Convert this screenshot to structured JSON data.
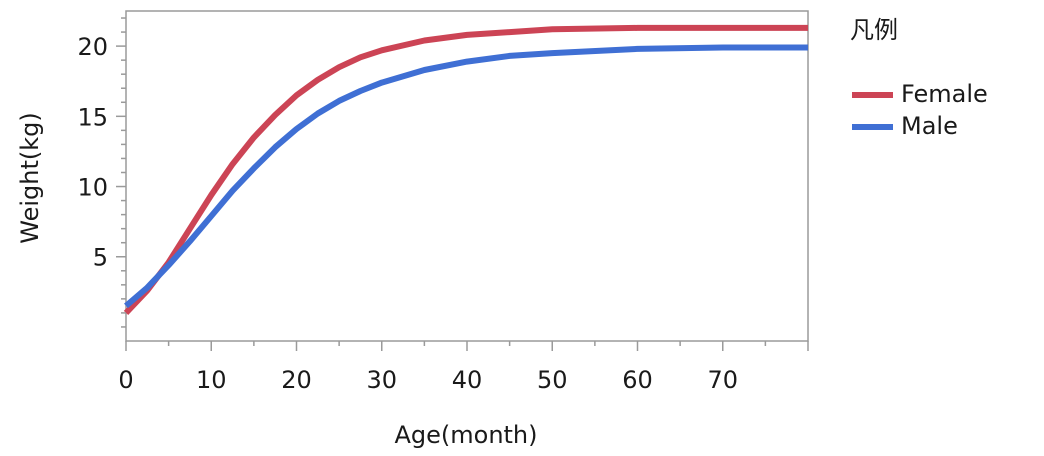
{
  "chart_data": {
    "type": "line",
    "xlabel": "Age(month)",
    "ylabel": "Weight(kg)",
    "xlim": [
      0,
      80
    ],
    "ylim": [
      -1,
      22.5
    ],
    "x_ticks": [
      "0",
      "10",
      "20",
      "30",
      "40",
      "50",
      "60",
      "70"
    ],
    "y_ticks": [
      "5",
      "10",
      "15",
      "20"
    ],
    "grid": false,
    "legend": {
      "title": "凡例",
      "position": "right"
    },
    "series": [
      {
        "name": "Female",
        "color": "#cc4455",
        "points": [
          [
            0,
            1.0
          ],
          [
            2.5,
            2.6
          ],
          [
            5,
            4.6
          ],
          [
            7.5,
            7.0
          ],
          [
            10,
            9.4
          ],
          [
            12.5,
            11.6
          ],
          [
            15,
            13.5
          ],
          [
            17.5,
            15.1
          ],
          [
            20,
            16.5
          ],
          [
            22.5,
            17.6
          ],
          [
            25,
            18.5
          ],
          [
            27.5,
            19.2
          ],
          [
            30,
            19.7
          ],
          [
            35,
            20.4
          ],
          [
            40,
            20.8
          ],
          [
            45,
            21.0
          ],
          [
            50,
            21.2
          ],
          [
            60,
            21.3
          ],
          [
            70,
            21.3
          ],
          [
            80,
            21.3
          ]
        ]
      },
      {
        "name": "Male",
        "color": "#3f6fd4",
        "points": [
          [
            0,
            1.5
          ],
          [
            2.5,
            2.8
          ],
          [
            5,
            4.4
          ],
          [
            7.5,
            6.1
          ],
          [
            10,
            7.9
          ],
          [
            12.5,
            9.7
          ],
          [
            15,
            11.3
          ],
          [
            17.5,
            12.8
          ],
          [
            20,
            14.1
          ],
          [
            22.5,
            15.2
          ],
          [
            25,
            16.1
          ],
          [
            27.5,
            16.8
          ],
          [
            30,
            17.4
          ],
          [
            35,
            18.3
          ],
          [
            40,
            18.9
          ],
          [
            45,
            19.3
          ],
          [
            50,
            19.5
          ],
          [
            60,
            19.8
          ],
          [
            70,
            19.9
          ],
          [
            80,
            19.9
          ]
        ]
      }
    ]
  }
}
